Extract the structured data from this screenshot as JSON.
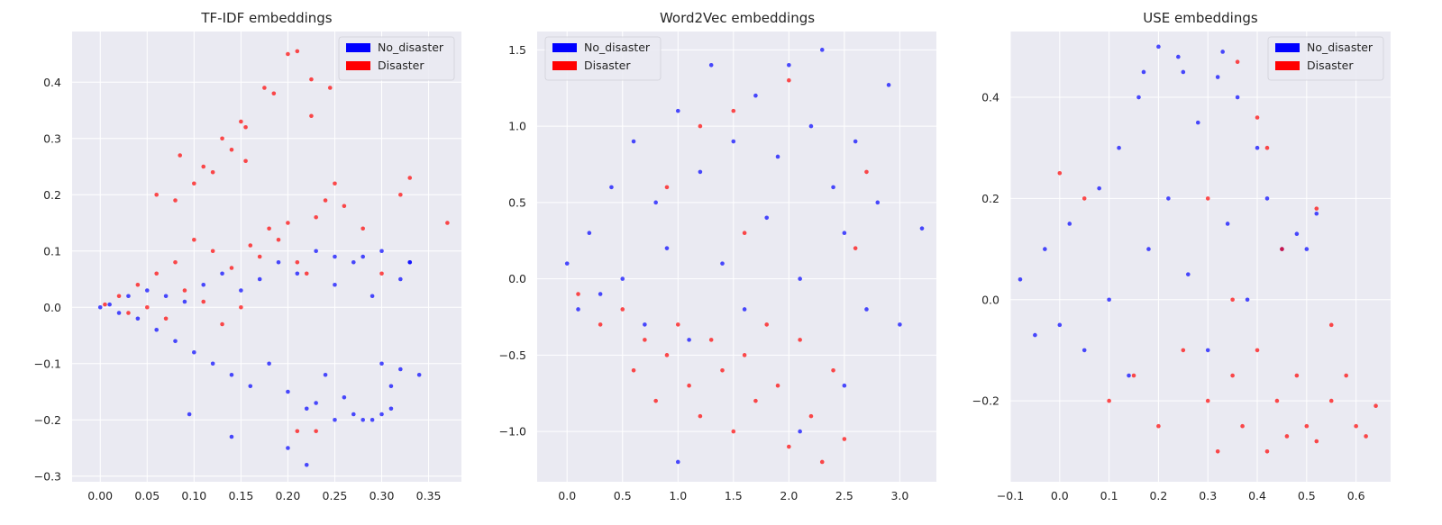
{
  "chart_data": [
    {
      "type": "scatter",
      "title": "TF-IDF embeddings",
      "xlim": [
        -0.03,
        0.385
      ],
      "ylim": [
        -0.31,
        0.49
      ],
      "xticks": [
        0.0,
        0.05,
        0.1,
        0.15,
        0.2,
        0.25,
        0.3,
        0.35
      ],
      "xtick_labels": [
        "0.00",
        "0.05",
        "0.10",
        "0.15",
        "0.20",
        "0.25",
        "0.30",
        "0.35"
      ],
      "yticks": [
        -0.3,
        -0.2,
        -0.1,
        0.0,
        0.1,
        0.2,
        0.3,
        0.4
      ],
      "ytick_labels": [
        "−0.3",
        "−0.2",
        "−0.1",
        "0.0",
        "0.1",
        "0.2",
        "0.3",
        "0.4"
      ],
      "grid": true,
      "legend_position": "top-right",
      "series": [
        {
          "name": "No_disaster",
          "color": "#0000ff",
          "points": [
            [
              0.0,
              0.0
            ],
            [
              0.01,
              0.005
            ],
            [
              0.02,
              -0.01
            ],
            [
              0.03,
              0.02
            ],
            [
              0.04,
              -0.02
            ],
            [
              0.05,
              0.03
            ],
            [
              0.06,
              -0.04
            ],
            [
              0.07,
              0.02
            ],
            [
              0.08,
              -0.06
            ],
            [
              0.09,
              0.01
            ],
            [
              0.1,
              -0.08
            ],
            [
              0.11,
              0.04
            ],
            [
              0.12,
              -0.1
            ],
            [
              0.13,
              0.06
            ],
            [
              0.14,
              -0.12
            ],
            [
              0.15,
              0.03
            ],
            [
              0.16,
              -0.14
            ],
            [
              0.17,
              0.05
            ],
            [
              0.18,
              -0.1
            ],
            [
              0.19,
              0.08
            ],
            [
              0.2,
              -0.15
            ],
            [
              0.21,
              0.06
            ],
            [
              0.22,
              -0.18
            ],
            [
              0.23,
              0.1
            ],
            [
              0.24,
              -0.12
            ],
            [
              0.25,
              0.04
            ],
            [
              0.26,
              -0.16
            ],
            [
              0.27,
              0.08
            ],
            [
              0.28,
              -0.2
            ],
            [
              0.29,
              0.02
            ],
            [
              0.3,
              -0.1
            ],
            [
              0.31,
              -0.14
            ],
            [
              0.32,
              0.05
            ],
            [
              0.33,
              0.08
            ],
            [
              0.34,
              -0.12
            ],
            [
              0.095,
              -0.19
            ],
            [
              0.14,
              -0.23
            ],
            [
              0.2,
              -0.25
            ],
            [
              0.22,
              -0.28
            ],
            [
              0.23,
              -0.17
            ],
            [
              0.25,
              -0.2
            ],
            [
              0.27,
              -0.19
            ],
            [
              0.29,
              -0.2
            ],
            [
              0.3,
              -0.19
            ],
            [
              0.31,
              -0.18
            ],
            [
              0.32,
              -0.11
            ],
            [
              0.33,
              0.08
            ],
            [
              0.25,
              0.09
            ],
            [
              0.28,
              0.09
            ],
            [
              0.3,
              0.1
            ]
          ]
        },
        {
          "name": "Disaster",
          "color": "#ff0000",
          "points": [
            [
              0.005,
              0.005
            ],
            [
              0.02,
              0.02
            ],
            [
              0.03,
              -0.01
            ],
            [
              0.04,
              0.04
            ],
            [
              0.05,
              0.0
            ],
            [
              0.06,
              0.06
            ],
            [
              0.07,
              -0.02
            ],
            [
              0.08,
              0.08
            ],
            [
              0.09,
              0.03
            ],
            [
              0.1,
              0.12
            ],
            [
              0.11,
              0.01
            ],
            [
              0.12,
              0.1
            ],
            [
              0.13,
              -0.03
            ],
            [
              0.14,
              0.07
            ],
            [
              0.15,
              0.0
            ],
            [
              0.16,
              0.11
            ],
            [
              0.17,
              0.09
            ],
            [
              0.18,
              0.14
            ],
            [
              0.19,
              0.12
            ],
            [
              0.2,
              0.15
            ],
            [
              0.21,
              0.08
            ],
            [
              0.22,
              0.06
            ],
            [
              0.23,
              0.16
            ],
            [
              0.24,
              0.19
            ],
            [
              0.25,
              0.22
            ],
            [
              0.26,
              0.18
            ],
            [
              0.28,
              0.14
            ],
            [
              0.3,
              0.06
            ],
            [
              0.32,
              0.2
            ],
            [
              0.33,
              0.23
            ],
            [
              0.37,
              0.15
            ],
            [
              0.2,
              0.45
            ],
            [
              0.225,
              0.405
            ],
            [
              0.245,
              0.39
            ],
            [
              0.21,
              0.455
            ],
            [
              0.15,
              0.33
            ],
            [
              0.155,
              0.32
            ],
            [
              0.13,
              0.3
            ],
            [
              0.14,
              0.28
            ],
            [
              0.11,
              0.25
            ],
            [
              0.12,
              0.24
            ],
            [
              0.1,
              0.22
            ],
            [
              0.085,
              0.27
            ],
            [
              0.06,
              0.2
            ],
            [
              0.08,
              0.19
            ],
            [
              0.155,
              0.26
            ],
            [
              0.175,
              0.39
            ],
            [
              0.185,
              0.38
            ],
            [
              0.225,
              0.34
            ],
            [
              0.23,
              -0.22
            ],
            [
              0.21,
              -0.22
            ]
          ]
        }
      ]
    },
    {
      "type": "scatter",
      "title": "Word2Vec embeddings",
      "xlim": [
        -0.27,
        3.33
      ],
      "ylim": [
        -1.33,
        1.62
      ],
      "xticks": [
        0.0,
        0.5,
        1.0,
        1.5,
        2.0,
        2.5,
        3.0
      ],
      "xtick_labels": [
        "0.0",
        "0.5",
        "1.0",
        "1.5",
        "2.0",
        "2.5",
        "3.0"
      ],
      "yticks": [
        -1.0,
        -0.5,
        0.0,
        0.5,
        1.0,
        1.5
      ],
      "ytick_labels": [
        "−1.0",
        "−0.5",
        "0.0",
        "0.5",
        "1.0",
        "1.5"
      ],
      "grid": true,
      "legend_position": "top-left",
      "series": [
        {
          "name": "No_disaster",
          "color": "#0000ff",
          "points": [
            [
              0.0,
              0.1
            ],
            [
              0.1,
              -0.2
            ],
            [
              0.2,
              0.3
            ],
            [
              0.3,
              -0.1
            ],
            [
              0.4,
              0.6
            ],
            [
              0.5,
              0.0
            ],
            [
              0.6,
              0.9
            ],
            [
              0.7,
              -0.3
            ],
            [
              0.8,
              0.5
            ],
            [
              0.9,
              0.2
            ],
            [
              1.0,
              1.1
            ],
            [
              1.1,
              -0.4
            ],
            [
              1.2,
              0.7
            ],
            [
              1.3,
              1.4
            ],
            [
              1.4,
              0.1
            ],
            [
              1.5,
              0.9
            ],
            [
              1.6,
              -0.2
            ],
            [
              1.7,
              1.2
            ],
            [
              1.8,
              0.4
            ],
            [
              1.9,
              0.8
            ],
            [
              2.0,
              1.4
            ],
            [
              2.1,
              0.0
            ],
            [
              2.2,
              1.0
            ],
            [
              2.3,
              1.5
            ],
            [
              2.4,
              0.6
            ],
            [
              2.5,
              0.3
            ],
            [
              2.6,
              0.9
            ],
            [
              2.7,
              -0.2
            ],
            [
              2.8,
              0.5
            ],
            [
              2.9,
              1.27
            ],
            [
              3.0,
              -0.3
            ],
            [
              3.2,
              0.33
            ],
            [
              1.0,
              -1.2
            ],
            [
              2.1,
              -1.0
            ],
            [
              2.5,
              -0.7
            ]
          ]
        },
        {
          "name": "Disaster",
          "color": "#ff0000",
          "points": [
            [
              0.1,
              -0.1
            ],
            [
              0.3,
              -0.3
            ],
            [
              0.5,
              -0.2
            ],
            [
              0.6,
              -0.6
            ],
            [
              0.7,
              -0.4
            ],
            [
              0.8,
              -0.8
            ],
            [
              0.9,
              -0.5
            ],
            [
              1.0,
              -0.3
            ],
            [
              1.1,
              -0.7
            ],
            [
              1.2,
              -0.9
            ],
            [
              1.3,
              -0.4
            ],
            [
              1.4,
              -0.6
            ],
            [
              1.5,
              -1.0
            ],
            [
              1.6,
              -0.5
            ],
            [
              1.7,
              -0.8
            ],
            [
              1.8,
              -0.3
            ],
            [
              1.9,
              -0.7
            ],
            [
              2.0,
              -1.1
            ],
            [
              2.1,
              -0.4
            ],
            [
              2.2,
              -0.9
            ],
            [
              2.3,
              -1.2
            ],
            [
              2.4,
              -0.6
            ],
            [
              2.5,
              -1.05
            ],
            [
              2.6,
              0.2
            ],
            [
              2.7,
              0.7
            ],
            [
              1.2,
              1.0
            ],
            [
              1.5,
              1.1
            ],
            [
              2.0,
              1.3
            ],
            [
              0.9,
              0.6
            ],
            [
              1.6,
              0.3
            ]
          ]
        }
      ]
    },
    {
      "type": "scatter",
      "title": "USE embeddings",
      "xlim": [
        -0.1,
        0.67
      ],
      "ylim": [
        -0.36,
        0.53
      ],
      "xticks": [
        -0.1,
        0.0,
        0.1,
        0.2,
        0.3,
        0.4,
        0.5,
        0.6
      ],
      "xtick_labels": [
        "−0.1",
        "0.0",
        "0.1",
        "0.2",
        "0.3",
        "0.4",
        "0.5",
        "0.6"
      ],
      "yticks": [
        -0.2,
        0.0,
        0.2,
        0.4
      ],
      "ytick_labels": [
        "−0.2",
        "0.0",
        "0.2",
        "0.4"
      ],
      "grid": true,
      "legend_position": "top-right",
      "series": [
        {
          "name": "No_disaster",
          "color": "#0000ff",
          "points": [
            [
              -0.08,
              0.04
            ],
            [
              -0.05,
              -0.07
            ],
            [
              -0.03,
              0.1
            ],
            [
              0.0,
              -0.05
            ],
            [
              0.02,
              0.15
            ],
            [
              0.05,
              -0.1
            ],
            [
              0.08,
              0.22
            ],
            [
              0.1,
              0.0
            ],
            [
              0.12,
              0.3
            ],
            [
              0.14,
              -0.15
            ],
            [
              0.16,
              0.4
            ],
            [
              0.18,
              0.1
            ],
            [
              0.2,
              0.5
            ],
            [
              0.22,
              0.2
            ],
            [
              0.24,
              0.48
            ],
            [
              0.26,
              0.05
            ],
            [
              0.28,
              0.35
            ],
            [
              0.3,
              -0.1
            ],
            [
              0.32,
              0.44
            ],
            [
              0.34,
              0.15
            ],
            [
              0.36,
              0.4
            ],
            [
              0.38,
              0.0
            ],
            [
              0.4,
              0.3
            ],
            [
              0.42,
              0.2
            ],
            [
              0.45,
              0.1
            ],
            [
              0.48,
              0.13
            ],
            [
              0.5,
              0.1
            ],
            [
              0.52,
              0.17
            ],
            [
              0.17,
              0.45
            ],
            [
              0.25,
              0.45
            ],
            [
              0.33,
              0.49
            ]
          ]
        },
        {
          "name": "Disaster",
          "color": "#ff0000",
          "points": [
            [
              0.0,
              0.25
            ],
            [
              0.05,
              0.2
            ],
            [
              0.1,
              -0.2
            ],
            [
              0.15,
              -0.15
            ],
            [
              0.2,
              -0.25
            ],
            [
              0.25,
              -0.1
            ],
            [
              0.3,
              -0.2
            ],
            [
              0.32,
              -0.3
            ],
            [
              0.35,
              -0.15
            ],
            [
              0.37,
              -0.25
            ],
            [
              0.4,
              -0.1
            ],
            [
              0.42,
              -0.3
            ],
            [
              0.44,
              -0.2
            ],
            [
              0.46,
              -0.27
            ],
            [
              0.48,
              -0.15
            ],
            [
              0.5,
              -0.25
            ],
            [
              0.52,
              -0.28
            ],
            [
              0.55,
              -0.2
            ],
            [
              0.58,
              -0.15
            ],
            [
              0.6,
              -0.25
            ],
            [
              0.62,
              -0.27
            ],
            [
              0.64,
              -0.21
            ],
            [
              0.55,
              -0.05
            ],
            [
              0.45,
              0.1
            ],
            [
              0.4,
              0.36
            ],
            [
              0.36,
              0.47
            ],
            [
              0.42,
              0.3
            ],
            [
              0.52,
              0.18
            ],
            [
              0.3,
              0.2
            ],
            [
              0.35,
              0.0
            ]
          ]
        }
      ]
    }
  ]
}
